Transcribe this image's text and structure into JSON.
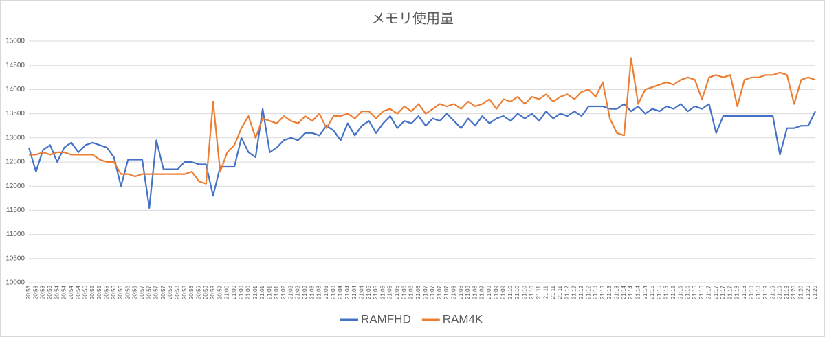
{
  "chart_data": {
    "type": "line",
    "title": "メモリ使用量",
    "categories": [
      "20:53",
      "20:53",
      "20:53",
      "20:53",
      "20:54",
      "20:54",
      "20:54",
      "20:54",
      "20:55",
      "20:55",
      "20:55",
      "20:55",
      "20:56",
      "20:56",
      "20:56",
      "20:56",
      "20:57",
      "20:57",
      "20:57",
      "20:57",
      "20:58",
      "20:58",
      "20:58",
      "20:58",
      "20:59",
      "20:59",
      "20:59",
      "20:59",
      "21:00",
      "21:00",
      "21:00",
      "21:00",
      "21:01",
      "21:01",
      "21:01",
      "21:01",
      "21:02",
      "21:02",
      "21:02",
      "21:02",
      "21:03",
      "21:03",
      "21:03",
      "21:03",
      "21:04",
      "21:04",
      "21:04",
      "21:04",
      "21:05",
      "21:05",
      "21:05",
      "21:05",
      "21:06",
      "21:06",
      "21:06",
      "21:06",
      "21:07",
      "21:07",
      "21:07",
      "21:07",
      "21:08",
      "21:08",
      "21:08",
      "21:08",
      "21:09",
      "21:09",
      "21:09",
      "21:09",
      "21:10",
      "21:10",
      "21:10",
      "21:10",
      "21:11",
      "21:11",
      "21:11",
      "21:11",
      "21:12",
      "21:12",
      "21:12",
      "21:12",
      "21:13",
      "21:13",
      "21:13",
      "21:13",
      "21:14",
      "21:14",
      "21:14",
      "21:14",
      "21:15",
      "21:15",
      "21:15",
      "21:15",
      "21:16",
      "21:16",
      "21:16",
      "21:16",
      "21:17",
      "21:17",
      "21:17",
      "21:17",
      "21:18",
      "21:18",
      "21:18",
      "21:18",
      "21:19",
      "21:19",
      "21:19",
      "21:19",
      "21:20",
      "21:20",
      "21:20",
      "21:20"
    ],
    "series": [
      {
        "name": "RAMFHD",
        "color": "#4472c4",
        "values": [
          12800,
          12300,
          12750,
          12850,
          12500,
          12800,
          12900,
          12700,
          12850,
          12900,
          12850,
          12800,
          12600,
          12000,
          12550,
          12550,
          12550,
          11550,
          12950,
          12350,
          12350,
          12350,
          12500,
          12500,
          12450,
          12450,
          11800,
          12400,
          12400,
          12400,
          13000,
          12700,
          12600,
          13600,
          12700,
          12800,
          12950,
          13000,
          12950,
          13100,
          13100,
          13050,
          13250,
          13150,
          12950,
          13300,
          13050,
          13250,
          13350,
          13100,
          13300,
          13450,
          13200,
          13350,
          13300,
          13450,
          13250,
          13400,
          13350,
          13500,
          13350,
          13200,
          13400,
          13250,
          13450,
          13300,
          13400,
          13450,
          13350,
          13500,
          13400,
          13500,
          13350,
          13550,
          13400,
          13500,
          13450,
          13550,
          13450,
          13650,
          13650,
          13650,
          13600,
          13600,
          13700,
          13550,
          13650,
          13500,
          13600,
          13550,
          13650,
          13600,
          13700,
          13550,
          13650,
          13600,
          13700,
          13100,
          13450,
          13450,
          13450,
          13450,
          13450,
          13450,
          13450,
          13450,
          12650,
          13200,
          13200,
          13250,
          13250,
          13550
        ]
      },
      {
        "name": "RAM4K",
        "color": "#ed7d31",
        "values": [
          12650,
          12650,
          12700,
          12650,
          12700,
          12700,
          12650,
          12650,
          12650,
          12650,
          12550,
          12500,
          12500,
          12250,
          12250,
          12200,
          12250,
          12250,
          12250,
          12250,
          12250,
          12250,
          12250,
          12300,
          12100,
          12050,
          13750,
          12300,
          12700,
          12850,
          13200,
          13450,
          13000,
          13400,
          13350,
          13300,
          13450,
          13350,
          13300,
          13450,
          13350,
          13500,
          13200,
          13450,
          13450,
          13500,
          13400,
          13550,
          13550,
          13400,
          13550,
          13600,
          13500,
          13650,
          13550,
          13700,
          13500,
          13600,
          13700,
          13650,
          13700,
          13600,
          13750,
          13650,
          13700,
          13800,
          13600,
          13800,
          13750,
          13850,
          13700,
          13850,
          13800,
          13900,
          13750,
          13850,
          13900,
          13800,
          13950,
          14000,
          13850,
          14150,
          13400,
          13100,
          13050,
          14650,
          13700,
          14000,
          14050,
          14100,
          14150,
          14100,
          14200,
          14250,
          14200,
          13800,
          14250,
          14300,
          14250,
          14300,
          13650,
          14200,
          14250,
          14250,
          14300,
          14300,
          14350,
          14300,
          13700,
          14200,
          14250,
          14200
        ]
      }
    ],
    "ylim": [
      10000,
      15000
    ],
    "yticks": [
      10000,
      10500,
      11000,
      11500,
      12000,
      12500,
      13000,
      13500,
      14000,
      14500,
      15000
    ],
    "grid": true,
    "legend": "bottom"
  }
}
